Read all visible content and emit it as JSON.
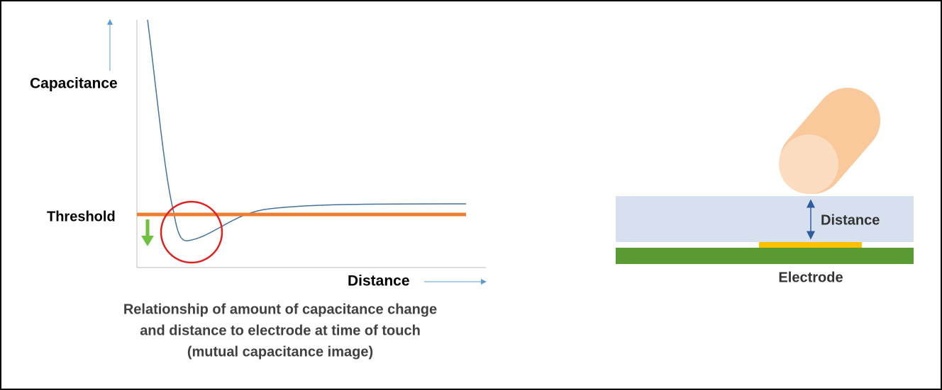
{
  "graph": {
    "y_label": "Capacitance",
    "threshold_label": "Threshold",
    "x_label": "Distance",
    "caption": [
      "Relationship of amount of capacitance change",
      "and distance to electrode at time of touch",
      "(mutual capacitance image)"
    ]
  },
  "illustration": {
    "distance_label": "Distance",
    "electrode_label": "Electrode"
  }
}
